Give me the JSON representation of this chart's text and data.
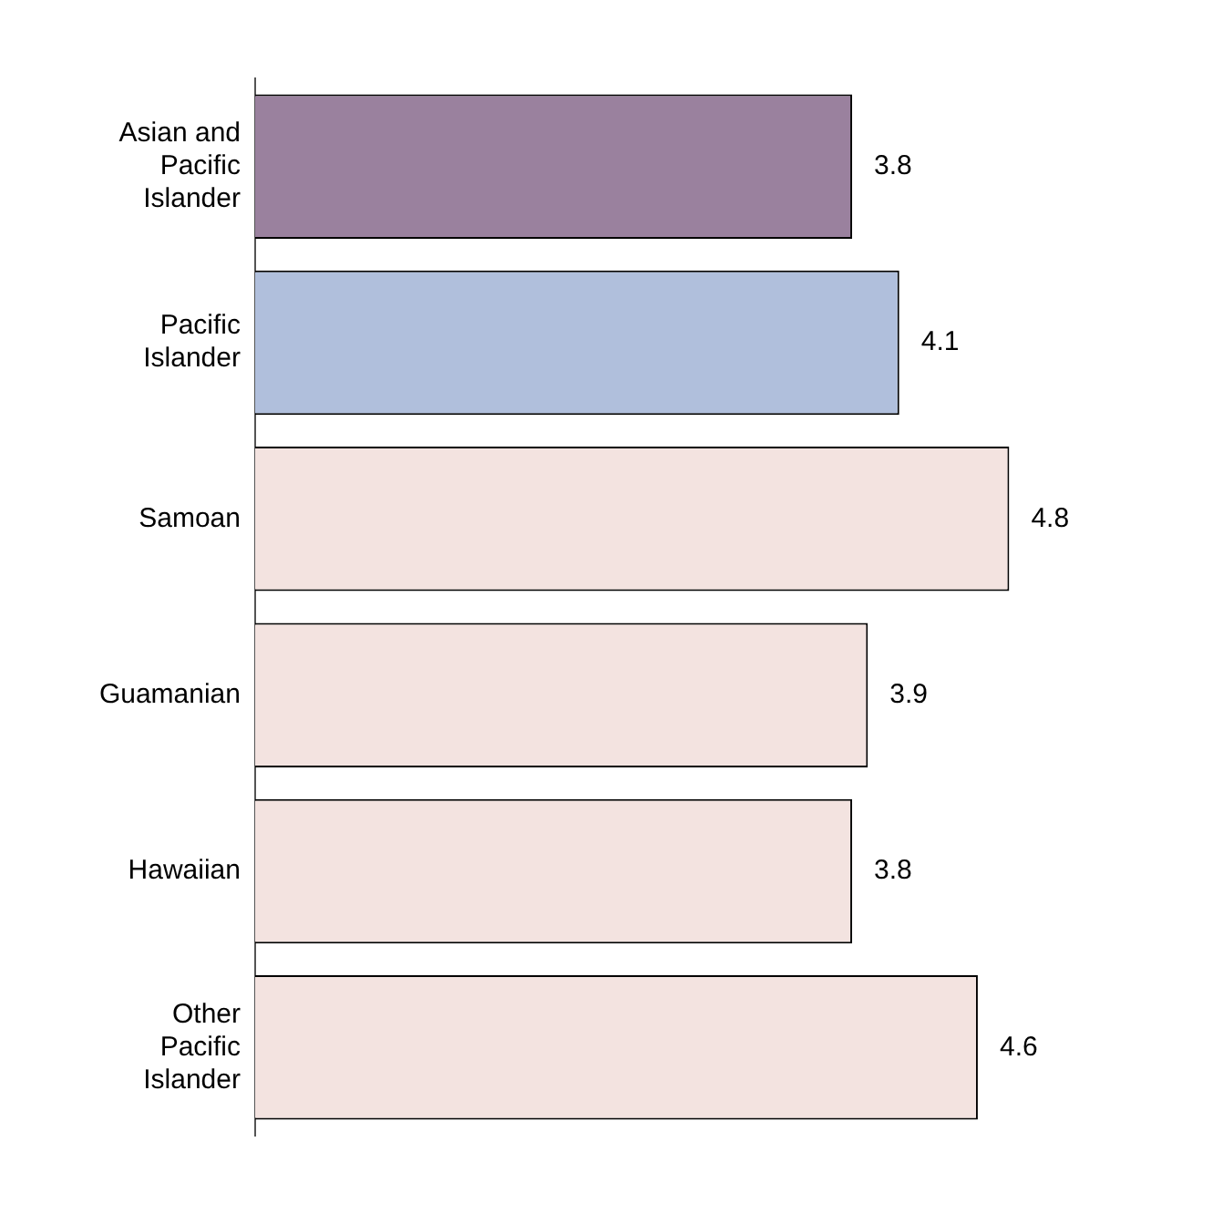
{
  "chart_data": {
    "type": "bar",
    "orientation": "horizontal",
    "categories": [
      "Asian and Pacific Islander",
      "Pacific Islander",
      "Samoan",
      "Guamanian",
      "Hawaiian",
      "Other Pacific Islander"
    ],
    "values": [
      3.8,
      4.1,
      4.8,
      3.9,
      3.8,
      4.6
    ],
    "colors": [
      "#9a819e",
      "#b0bfdc",
      "#f3e3e0",
      "#f3e3e0",
      "#f3e3e0",
      "#f3e3e0"
    ],
    "data_labels": true
  }
}
